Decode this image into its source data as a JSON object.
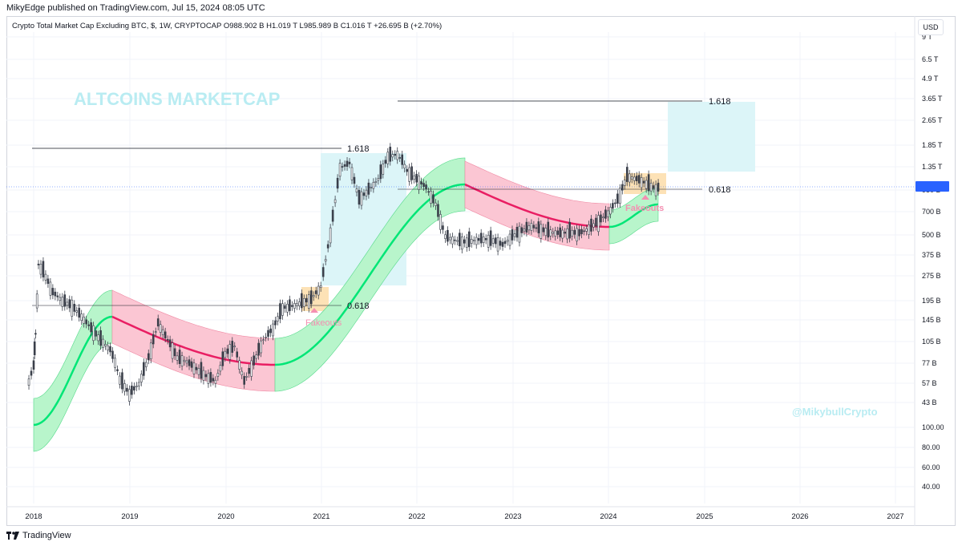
{
  "header": {
    "published": "MikyEdge published on TradingView.com, Jul 15, 2024 08:05 UTC"
  },
  "legend": {
    "text": "Crypto Total Market Cap Excluding BTC, $, 1W, CRYPTOCAP  O988.902 B  H1.019 T  L985.989 B  C1.016 T  +26.695 B (+2.70%)"
  },
  "currency_button": "USD",
  "footer": {
    "brand": "TradingView"
  },
  "colors": {
    "grid": "#f0f3fa",
    "candle": "#3a3f4a",
    "band_green": "#b8f5cb",
    "band_red": "#fbc6d3",
    "line_green": "#00e676",
    "line_red": "#e91e63",
    "zone_blue": "#dcf5f8",
    "zone_orange": "#fde2b6",
    "watermark": "#b9ecf2",
    "fakeout": "#f48fb1",
    "price_tag": "#2962ff"
  },
  "chart_data": {
    "type": "line",
    "title": "ALTCOINS MARKETCAP",
    "watermark": "@MikybullCrypto",
    "x_ticks": [
      "2018",
      "2019",
      "2020",
      "2021",
      "2022",
      "2023",
      "2024",
      "2025",
      "2026",
      "2027"
    ],
    "y_ticks": [
      "9 T",
      "6.5 T",
      "4.9 T",
      "3.65 T",
      "2.65 T",
      "1.85 T",
      "1.35 T",
      "950 B",
      "700 B",
      "500 B",
      "375 B",
      "275 B",
      "195 B",
      "145 B",
      "105 B",
      "77 B",
      "57 B",
      "43 B",
      "100.00",
      "80.00",
      "60.00",
      "40.00"
    ],
    "last_price_label": "1.016 T",
    "annotations": {
      "fib_1618": "1.618",
      "fib_0618": "0.618",
      "fakeouts": "Fakeouts"
    },
    "series": [
      {
        "type": "candlestick_approx",
        "x": [
          2017.95,
          2018.0,
          2018.02,
          2018.05,
          2018.1,
          2018.2,
          2018.3,
          2018.4,
          2018.5,
          2018.6,
          2018.7,
          2018.8,
          2018.85,
          2018.9,
          2019.0,
          2019.1,
          2019.2,
          2019.3,
          2019.4,
          2019.5,
          2019.6,
          2019.7,
          2019.8,
          2019.9,
          2020.0,
          2020.1,
          2020.2,
          2020.3,
          2020.4,
          2020.5,
          2020.6,
          2020.7,
          2020.8,
          2020.9,
          2021.0,
          2021.1,
          2021.2,
          2021.3,
          2021.4,
          2021.5,
          2021.6,
          2021.7,
          2021.8,
          2021.85,
          2021.9,
          2022.0,
          2022.1,
          2022.2,
          2022.3,
          2022.4,
          2022.5,
          2022.6,
          2022.7,
          2022.8,
          2022.9,
          2023.0,
          2023.1,
          2023.2,
          2023.3,
          2023.4,
          2023.5,
          2023.6,
          2023.7,
          2023.8,
          2023.9,
          2024.0,
          2024.1,
          2024.2,
          2024.3,
          2024.4,
          2024.5,
          2024.55
        ],
        "y": [
          60,
          75,
          120,
          330,
          300,
          220,
          195,
          180,
          155,
          130,
          110,
          95,
          80,
          62,
          50,
          58,
          85,
          140,
          110,
          85,
          80,
          72,
          65,
          60,
          90,
          100,
          60,
          80,
          110,
          130,
          175,
          180,
          190,
          200,
          240,
          520,
          1350,
          1450,
          860,
          980,
          1150,
          1600,
          1650,
          1500,
          1300,
          1150,
          1020,
          800,
          500,
          470,
          460,
          470,
          480,
          470,
          440,
          500,
          540,
          580,
          550,
          530,
          520,
          530,
          520,
          560,
          620,
          700,
          850,
          1200,
          1150,
          1080,
          1000,
          1016
        ]
      }
    ],
    "x_range": [
      2017.9,
      2027.3
    ],
    "y_scale": "log"
  }
}
